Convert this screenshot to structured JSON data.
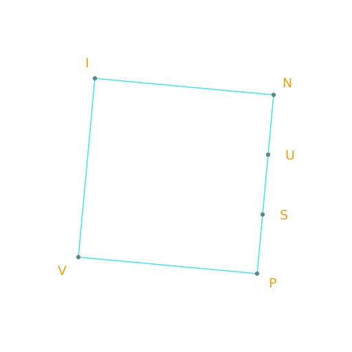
{
  "figure": {
    "colors": {
      "edge": "#44e8f0",
      "point": "#5a8a8a",
      "label": "#f0a010",
      "background": "#ffffff"
    },
    "points": [
      {
        "id": "I",
        "label": "I"
      },
      {
        "id": "N",
        "label": "N"
      },
      {
        "id": "U",
        "label": "U"
      },
      {
        "id": "S",
        "label": "S"
      },
      {
        "id": "P",
        "label": "P"
      },
      {
        "id": "V",
        "label": "V"
      }
    ],
    "segments": [
      {
        "from": "I",
        "to": "N"
      },
      {
        "from": "N",
        "to": "P"
      },
      {
        "from": "P",
        "to": "V"
      },
      {
        "from": "V",
        "to": "I"
      }
    ]
  }
}
